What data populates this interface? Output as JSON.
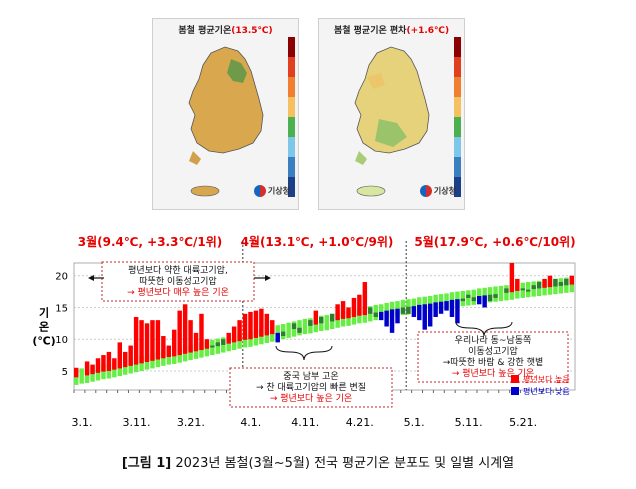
{
  "maps": [
    {
      "title_prefix": "봄철 평균기온",
      "title_value": "(13.5℃)",
      "agency": "기상청"
    },
    {
      "title_prefix": "봄철 평균기온 편차",
      "title_value": "(+1.6℃)",
      "agency": "기상청"
    }
  ],
  "colors": {
    "above": "#ff0000",
    "below": "#0000cc",
    "normal_band": "#66ee44",
    "observed": "#2e7d32",
    "header": "#e60000"
  },
  "chart_data": {
    "type": "bar",
    "ylabel": "기 온 (℃)",
    "ylim": [
      2,
      22
    ],
    "yticks": [
      5,
      10,
      15,
      20
    ],
    "month_headers": [
      {
        "label": "3월(9.4℃, +3.3℃/1위)"
      },
      {
        "label": "4월(13.1℃, +1.0℃/9위)"
      },
      {
        "label": "5월(17.9℃, +0.6℃/10위)"
      }
    ],
    "major_ticks": [
      "3.1.",
      "3.11.",
      "3.21.",
      "4.1.",
      "4.11.",
      "4.21.",
      "5.1.",
      "5.11.",
      "5.21."
    ],
    "annotations": [
      {
        "lines": [
          "평년보다 약한 대륙고기압,",
          "따뜻한 이동성고기압",
          "→ 평년보다 매우 높은 기온"
        ]
      },
      {
        "lines": [
          "중국 남부 고온",
          "→ 찬 대륙고기압의 빠른 변질",
          "→ 평년보다 높은 기온"
        ]
      },
      {
        "lines": [
          "우리나라 동~남동쪽",
          "이동성고기압",
          "→따뜻한 바람 & 강한 햇볕",
          "→ 평년보다 높은 기온"
        ]
      }
    ],
    "legend": [
      {
        "label": "평년보다 높음",
        "key": "above"
      },
      {
        "label": "평년보다 낮음",
        "key": "below"
      }
    ],
    "normal": [
      4.0,
      4.2,
      4.3,
      4.5,
      4.7,
      4.9,
      5.0,
      5.2,
      5.4,
      5.6,
      5.8,
      6.0,
      6.2,
      6.4,
      6.6,
      6.8,
      7.0,
      7.2,
      7.3,
      7.5,
      7.7,
      7.9,
      8.1,
      8.3,
      8.5,
      8.7,
      8.9,
      9.1,
      9.3,
      9.5,
      9.7,
      9.9,
      10.0,
      10.2,
      10.4,
      10.6,
      10.8,
      11.0,
      11.2,
      11.4,
      11.6,
      11.8,
      12.0,
      12.1,
      12.3,
      12.5,
      12.6,
      12.8,
      13.0,
      13.2,
      13.3,
      13.5,
      13.7,
      13.8,
      14.0,
      14.2,
      14.3,
      14.5,
      14.7,
      14.8,
      15.0,
      15.1,
      15.2,
      15.4,
      15.5,
      15.6,
      15.8,
      15.9,
      16.0,
      16.2,
      16.3,
      16.4,
      16.5,
      16.6,
      16.8,
      16.9,
      17.0,
      17.1,
      17.2,
      17.3,
      17.4,
      17.6,
      17.7,
      17.8,
      17.9,
      18.0,
      18.1,
      18.2,
      18.3,
      18.4,
      18.5,
      18.6
    ],
    "observed": [
      5.5,
      4.5,
      6.5,
      6.0,
      7.0,
      7.5,
      8.0,
      7.0,
      9.5,
      8.0,
      9.0,
      13.5,
      13.0,
      12.5,
      13.0,
      13.0,
      10.5,
      9.0,
      11.5,
      14.5,
      15.5,
      13.0,
      11.0,
      14.0,
      10.0,
      9.0,
      9.5,
      10.0,
      11.0,
      12.0,
      13.0,
      14.0,
      14.3,
      14.5,
      14.8,
      14.0,
      13.0,
      9.5,
      10.5,
      11.5,
      12.5,
      11.0,
      12.0,
      13.0,
      14.5,
      13.5,
      12.5,
      14.0,
      15.5,
      16.0,
      15.0,
      16.5,
      17.0,
      19.0,
      15.0,
      13.5,
      13.0,
      12.0,
      11.0,
      12.5,
      14.0,
      14.0,
      13.5,
      13.0,
      11.5,
      12.0,
      13.5,
      14.0,
      14.5,
      13.5,
      12.5,
      16.0,
      17.0,
      16.0,
      15.5,
      15.0,
      16.0,
      16.5,
      17.0,
      18.0,
      22.0,
      19.5,
      18.0,
      17.5,
      18.5,
      19.0,
      19.5,
      20.0,
      19.5,
      19.0,
      19.5,
      20.0
    ]
  },
  "caption_bold": "[그림 1]",
  "caption_text": " 2023년 봄철(3월~5월) 전국 평균기온 분포도 및 일별 시계열"
}
